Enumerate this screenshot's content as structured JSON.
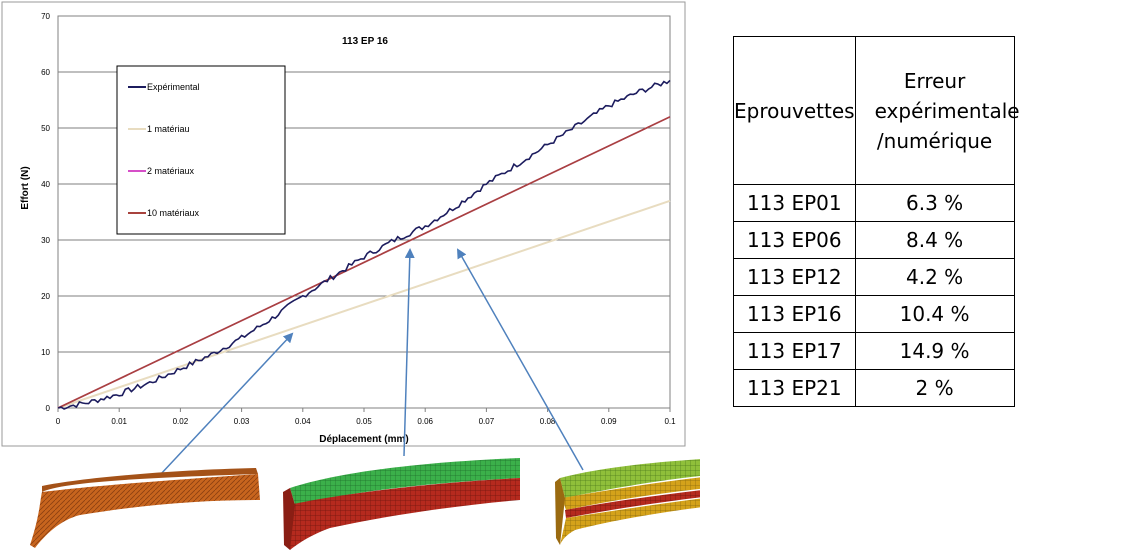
{
  "chart_data": {
    "type": "line",
    "title": "113 EP 16",
    "xlabel": "Déplacement (mm)",
    "ylabel": "Effort (N)",
    "xlim": [
      0,
      0.1
    ],
    "ylim": [
      0,
      70
    ],
    "x_ticks": [
      "0",
      "0.01",
      "0.02",
      "0.03",
      "0.04",
      "0.05",
      "0.06",
      "0.07",
      "0.08",
      "0.09",
      "0.1"
    ],
    "y_ticks": [
      "0",
      "10",
      "20",
      "30",
      "40",
      "50",
      "60",
      "70"
    ],
    "grid": "horizontal",
    "legend_position": "upper-left",
    "series": [
      {
        "name": "Expérimental",
        "color": "#1c1c5e",
        "x": [
          0,
          0.005,
          0.01,
          0.015,
          0.02,
          0.025,
          0.03,
          0.035,
          0.04,
          0.045,
          0.05,
          0.055,
          0.06,
          0.065,
          0.07,
          0.075,
          0.08,
          0.085,
          0.09,
          0.095,
          0.1
        ],
        "y": [
          0,
          1,
          2.5,
          4.5,
          7,
          9.5,
          12.5,
          16,
          20,
          23.5,
          27,
          30,
          32.5,
          36,
          40,
          43.5,
          47,
          50.5,
          54,
          56.5,
          58.5
        ]
      },
      {
        "name": "1 matériau",
        "color": "#e8dcc0",
        "x": [
          0,
          0.1
        ],
        "y": [
          0,
          37
        ]
      },
      {
        "name": "2 matériaux",
        "color": "#d64fc8",
        "x": [
          0,
          0.1
        ],
        "y": [
          0,
          52
        ]
      },
      {
        "name": "10 matériaux",
        "color": "#a8433d",
        "x": [
          0,
          0.1
        ],
        "y": [
          0,
          52
        ]
      }
    ]
  },
  "table": {
    "header": [
      "Eprouvettes",
      "Erreur expérimentale /numérique"
    ],
    "rows": [
      [
        "113 EP01",
        "6.3 %"
      ],
      [
        "113 EP06",
        "8.4 %"
      ],
      [
        "113 EP12",
        "4.2 %"
      ],
      [
        "113 EP16",
        "10.4 %"
      ],
      [
        "113 EP17",
        "14.9 %"
      ],
      [
        "113 EP21",
        "2 %"
      ]
    ]
  },
  "colors": {
    "arrow": "#4f81bd",
    "model_1_body": "#c8651e",
    "model_2_top": "#3bb04a",
    "model_2_bottom": "#b52a1e",
    "model_3_top": "#8fbf3a",
    "model_3_mid": "#d4a21a",
    "model_3_bottom": "#b52a1e"
  }
}
